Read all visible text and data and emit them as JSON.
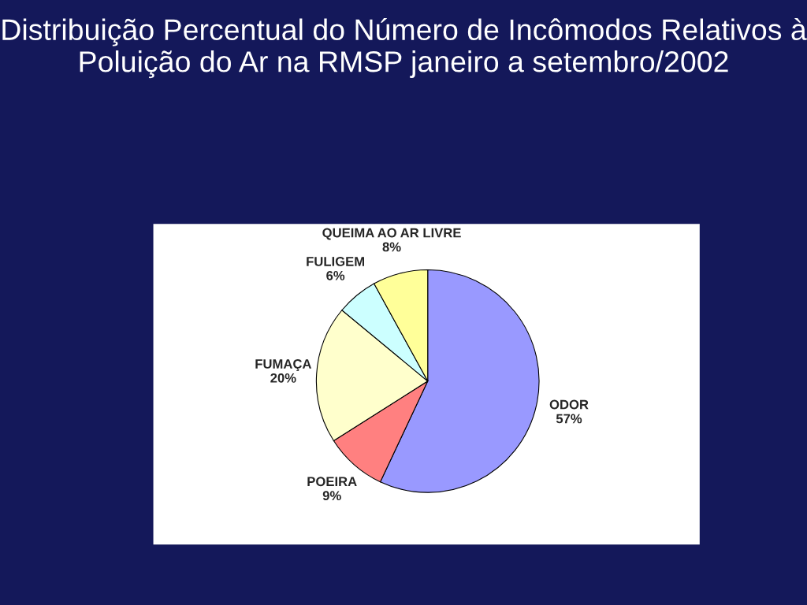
{
  "chart_data": {
    "type": "pie",
    "title": "Distribuição Percentual do Número de Incômodos Relativos à Poluição do Ar na RMSP janeiro a setembro/2002",
    "categories": [
      "ODOR",
      "POEIRA",
      "FUMAÇA",
      "FULIGEM",
      "QUEIMA AO AR LIVRE"
    ],
    "values": [
      57,
      9,
      20,
      6,
      8
    ],
    "value_labels": [
      "57%",
      "9%",
      "20%",
      "6%",
      "8%"
    ],
    "colors": [
      "#9999ff",
      "#ff8080",
      "#ffffcc",
      "#ccffff",
      "#ffff99"
    ],
    "legend": false
  }
}
